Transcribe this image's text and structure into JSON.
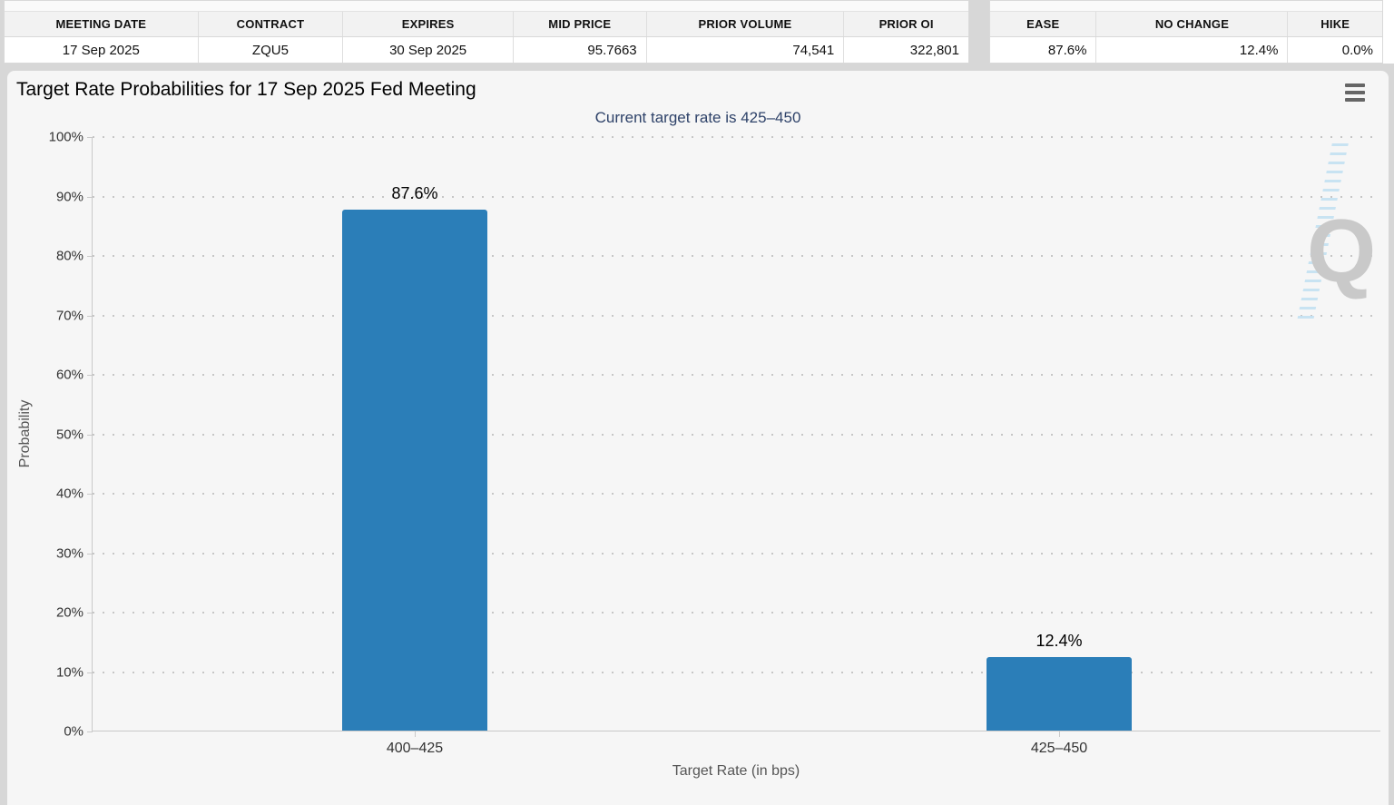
{
  "contract_table": {
    "headers": [
      "MEETING DATE",
      "CONTRACT",
      "EXPIRES",
      "MID PRICE",
      "PRIOR VOLUME",
      "PRIOR OI"
    ],
    "row": [
      "17 Sep 2025",
      "ZQU5",
      "30 Sep 2025",
      "95.7663",
      "74,541",
      "322,801"
    ]
  },
  "rate_move_table": {
    "headers": [
      "EASE",
      "NO CHANGE",
      "HIKE"
    ],
    "row": [
      "87.6%",
      "12.4%",
      "0.0%"
    ]
  },
  "chart_data": {
    "type": "bar",
    "title": "Target Rate Probabilities for 17 Sep 2025 Fed Meeting",
    "subtitle": "Current target rate is 425–450",
    "categories": [
      "400–425",
      "425–450"
    ],
    "values": [
      87.6,
      12.4
    ],
    "value_labels": [
      "87.6%",
      "12.4%"
    ],
    "xlabel": "Target Rate (in bps)",
    "ylabel": "Probability",
    "ylim": [
      0,
      100
    ],
    "ytick_step": 10,
    "ytick_labels": [
      "0%",
      "10%",
      "20%",
      "30%",
      "40%",
      "50%",
      "60%",
      "70%",
      "80%",
      "90%",
      "100%"
    ],
    "grid": "dotted",
    "legend": "none",
    "bar_color": "#2b7eb8",
    "subtitle_color": "#2e4269",
    "watermark": "Q"
  }
}
